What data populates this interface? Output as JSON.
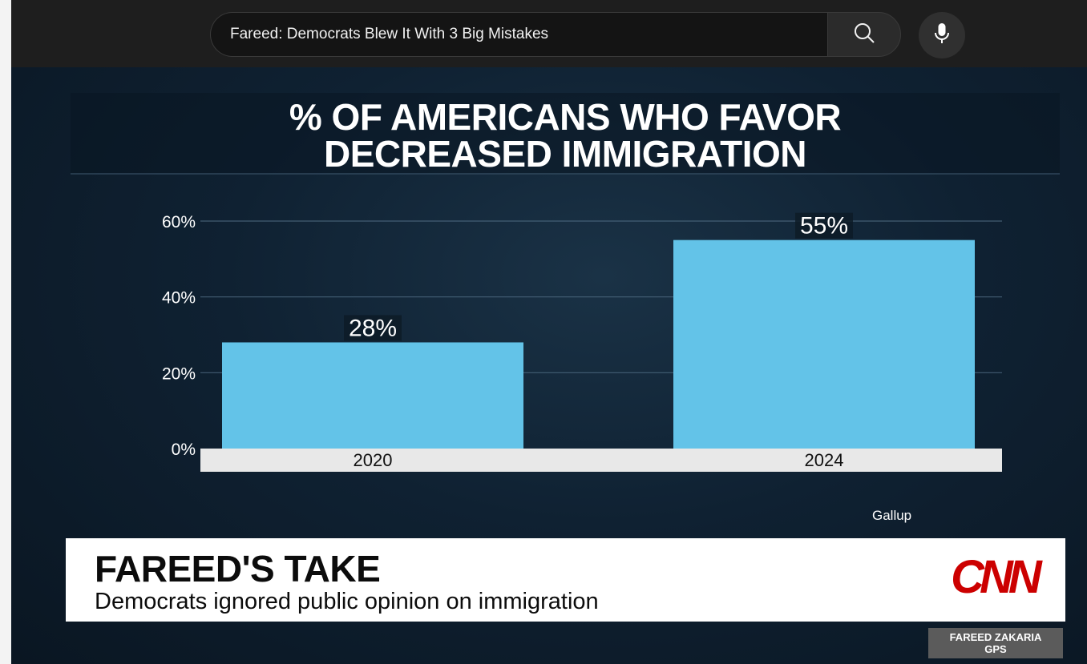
{
  "search": {
    "query": "Fareed: Democrats Blew It With 3 Big Mistakes"
  },
  "icons": {
    "search": "search-icon",
    "mic": "microphone-icon"
  },
  "colors": {
    "bar": "#63c3e8",
    "background": "#0f2132",
    "axis_strip": "#e8e8e8",
    "cnn_red": "#cc0000"
  },
  "chart_data": {
    "type": "bar",
    "title": "% OF AMERICANS WHO FAVOR DECREASED IMMIGRATION",
    "title_lines": [
      "% OF AMERICANS WHO FAVOR",
      "DECREASED IMMIGRATION"
    ],
    "categories": [
      "2020",
      "2024"
    ],
    "values": [
      28,
      55
    ],
    "data_labels": [
      "28%",
      "55%"
    ],
    "yticks": [
      "0%",
      "20%",
      "40%",
      "60%"
    ],
    "ytick_values": [
      0,
      20,
      40,
      60
    ],
    "ylim": [
      0,
      60
    ],
    "grid": true,
    "source": "Gallup"
  },
  "lower_third": {
    "title": "FAREED'S TAKE",
    "subtitle": "Democrats ignored public opinion on immigration"
  },
  "network": {
    "logo": "CNN",
    "show_line1": "FAREED ZAKARIA",
    "show_line2": "GPS"
  }
}
